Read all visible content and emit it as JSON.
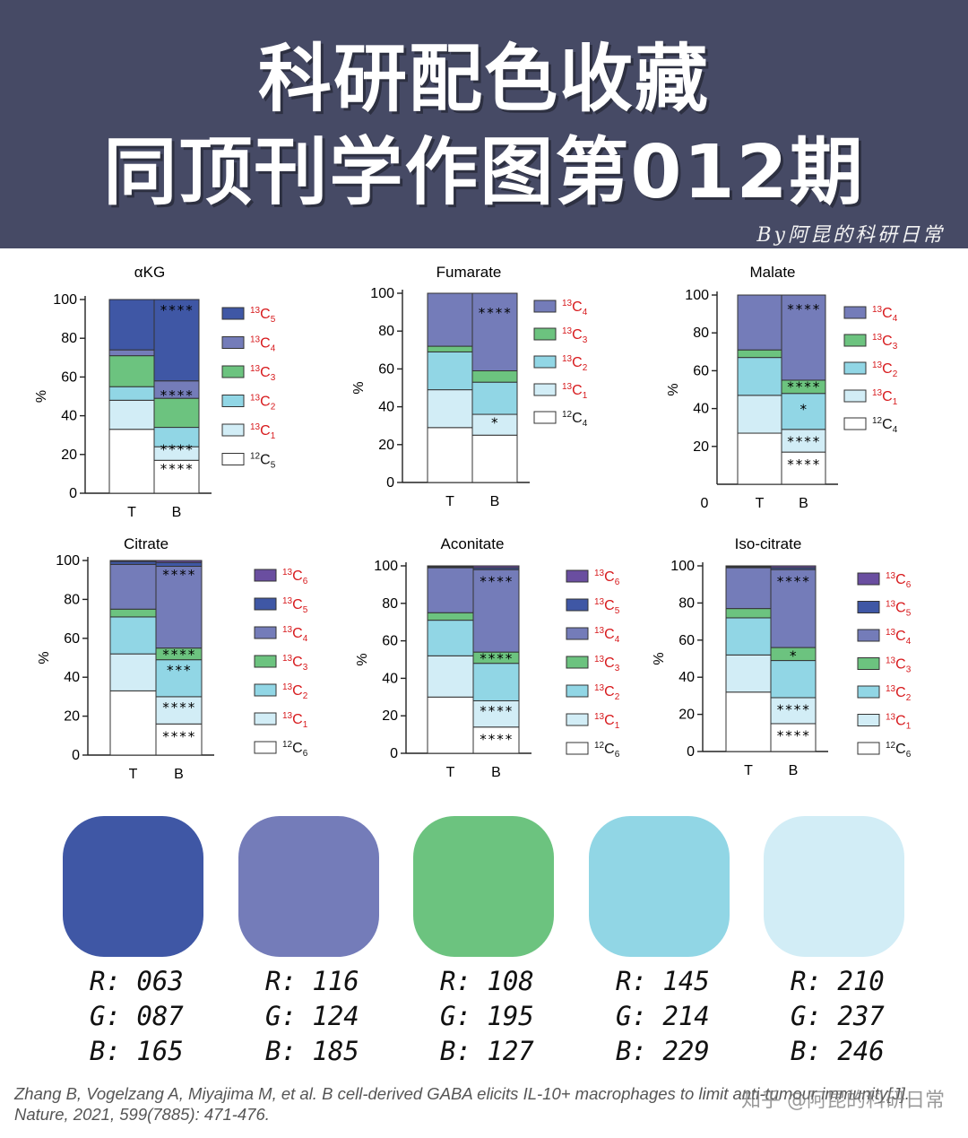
{
  "header": {
    "title_line1": "科研配色收藏",
    "title_line2": "同顶刊学作图第012期",
    "byline": "By阿昆的科研日常"
  },
  "colors": {
    "header_bg": "#464a65",
    "C6": "#6a4ea0",
    "C5": "#3f57a5",
    "C4": "#747cb9",
    "C3": "#6cc37f",
    "C2": "#91d6e5",
    "C1": "#d2edf6",
    "C0": "#ffffff"
  },
  "chart_data": [
    {
      "type": "bar",
      "stacked": true,
      "title": "αKG",
      "ylabel": "%",
      "ylim": [
        0,
        100
      ],
      "yticks": [
        0,
        20,
        40,
        60,
        80,
        100
      ],
      "categories": [
        "T",
        "B"
      ],
      "series": [
        {
          "name": "12C5",
          "values": [
            33,
            17
          ]
        },
        {
          "name": "13C1",
          "values": [
            15,
            7
          ]
        },
        {
          "name": "13C2",
          "values": [
            7,
            10
          ]
        },
        {
          "name": "13C3",
          "values": [
            16,
            15
          ]
        },
        {
          "name": "13C4",
          "values": [
            3,
            9
          ]
        },
        {
          "name": "13C5",
          "values": [
            26,
            42
          ]
        }
      ],
      "annotations": [
        {
          "category": "B",
          "label": "****",
          "y": 95
        },
        {
          "category": "B",
          "label": "****",
          "y": 51
        },
        {
          "category": "B",
          "label": "****",
          "y": 23
        },
        {
          "category": "B",
          "label": "****",
          "y": 13
        }
      ],
      "legend": [
        {
          "iso": "13",
          "el": "C",
          "sub": "5"
        },
        {
          "iso": "13",
          "el": "C",
          "sub": "4"
        },
        {
          "iso": "13",
          "el": "C",
          "sub": "3"
        },
        {
          "iso": "13",
          "el": "C",
          "sub": "2"
        },
        {
          "iso": "13",
          "el": "C",
          "sub": "1"
        },
        {
          "iso": "12",
          "el": "C",
          "sub": "5"
        }
      ]
    },
    {
      "type": "bar",
      "stacked": true,
      "title": "Fumarate",
      "ylabel": "%",
      "ylim": [
        0,
        100
      ],
      "yticks": [
        0,
        20,
        40,
        60,
        80,
        100
      ],
      "categories": [
        "T",
        "B"
      ],
      "series": [
        {
          "name": "12C4",
          "values": [
            29,
            25
          ]
        },
        {
          "name": "13C1",
          "values": [
            20,
            11
          ]
        },
        {
          "name": "13C2",
          "values": [
            20,
            17
          ]
        },
        {
          "name": "13C3",
          "values": [
            3,
            6
          ]
        },
        {
          "name": "13C4",
          "values": [
            28,
            41
          ]
        }
      ],
      "annotations": [
        {
          "category": "B",
          "label": "****",
          "y": 90
        },
        {
          "category": "B",
          "label": "*",
          "y": 32
        }
      ],
      "legend": [
        {
          "iso": "13",
          "el": "C",
          "sub": "4"
        },
        {
          "iso": "13",
          "el": "C",
          "sub": "3"
        },
        {
          "iso": "13",
          "el": "C",
          "sub": "2"
        },
        {
          "iso": "13",
          "el": "C",
          "sub": "1"
        },
        {
          "iso": "12",
          "el": "C",
          "sub": "4"
        }
      ]
    },
    {
      "type": "bar",
      "stacked": true,
      "title": "Malate",
      "ylabel": "%",
      "ylim": [
        0,
        100
      ],
      "yticks": [
        20,
        40,
        60,
        80,
        100
      ],
      "xorigin_label": "0",
      "categories": [
        "T",
        "B"
      ],
      "series": [
        {
          "name": "12C4",
          "values": [
            27,
            17
          ]
        },
        {
          "name": "13C1",
          "values": [
            20,
            12
          ]
        },
        {
          "name": "13C2",
          "values": [
            20,
            19
          ]
        },
        {
          "name": "13C3",
          "values": [
            4,
            7
          ]
        },
        {
          "name": "13C4",
          "values": [
            29,
            45
          ]
        }
      ],
      "annotations": [
        {
          "category": "B",
          "label": "****",
          "y": 93
        },
        {
          "category": "B",
          "label": "****",
          "y": 52
        },
        {
          "category": "B",
          "label": "*",
          "y": 40
        },
        {
          "category": "B",
          "label": "****",
          "y": 23
        },
        {
          "category": "B",
          "label": "****",
          "y": 11
        }
      ],
      "legend": [
        {
          "iso": "13",
          "el": "C",
          "sub": "4"
        },
        {
          "iso": "13",
          "el": "C",
          "sub": "3"
        },
        {
          "iso": "13",
          "el": "C",
          "sub": "2"
        },
        {
          "iso": "13",
          "el": "C",
          "sub": "1"
        },
        {
          "iso": "12",
          "el": "C",
          "sub": "4"
        }
      ]
    },
    {
      "type": "bar",
      "stacked": true,
      "title": "Citrate",
      "ylabel": "%",
      "ylim": [
        0,
        100
      ],
      "yticks": [
        0,
        20,
        40,
        60,
        80,
        100
      ],
      "categories": [
        "T",
        "B"
      ],
      "series": [
        {
          "name": "12C6",
          "values": [
            33,
            16
          ]
        },
        {
          "name": "13C1",
          "values": [
            19,
            14
          ]
        },
        {
          "name": "13C2",
          "values": [
            19,
            19
          ]
        },
        {
          "name": "13C3",
          "values": [
            4,
            6
          ]
        },
        {
          "name": "13C4",
          "values": [
            23,
            42
          ]
        },
        {
          "name": "13C5",
          "values": [
            1.5,
            2
          ]
        },
        {
          "name": "13C6",
          "values": [
            0.5,
            1
          ]
        }
      ],
      "annotations": [
        {
          "category": "B",
          "label": "****",
          "y": 93
        },
        {
          "category": "B",
          "label": "****",
          "y": 52
        },
        {
          "category": "B",
          "label": "***",
          "y": 44
        },
        {
          "category": "B",
          "label": "****",
          "y": 25
        },
        {
          "category": "B",
          "label": "****",
          "y": 10
        }
      ],
      "legend": [
        {
          "iso": "13",
          "el": "C",
          "sub": "6"
        },
        {
          "iso": "13",
          "el": "C",
          "sub": "5"
        },
        {
          "iso": "13",
          "el": "C",
          "sub": "4"
        },
        {
          "iso": "13",
          "el": "C",
          "sub": "3"
        },
        {
          "iso": "13",
          "el": "C",
          "sub": "2"
        },
        {
          "iso": "13",
          "el": "C",
          "sub": "1"
        },
        {
          "iso": "12",
          "el": "C",
          "sub": "6"
        }
      ]
    },
    {
      "type": "bar",
      "stacked": true,
      "title": "Aconitate",
      "ylabel": "%",
      "ylim": [
        0,
        100
      ],
      "yticks": [
        0,
        20,
        40,
        60,
        80,
        100
      ],
      "categories": [
        "T",
        "B"
      ],
      "series": [
        {
          "name": "12C6",
          "values": [
            30,
            14
          ]
        },
        {
          "name": "13C1",
          "values": [
            22,
            14
          ]
        },
        {
          "name": "13C2",
          "values": [
            19,
            20
          ]
        },
        {
          "name": "13C3",
          "values": [
            4,
            6
          ]
        },
        {
          "name": "13C4",
          "values": [
            24,
            44
          ]
        },
        {
          "name": "13C5",
          "values": [
            0.5,
            1
          ]
        },
        {
          "name": "13C6",
          "values": [
            0.5,
            1
          ]
        }
      ],
      "annotations": [
        {
          "category": "B",
          "label": "****",
          "y": 92
        },
        {
          "category": "B",
          "label": "****",
          "y": 51
        },
        {
          "category": "B",
          "label": "****",
          "y": 23
        },
        {
          "category": "B",
          "label": "****",
          "y": 8
        }
      ],
      "legend": [
        {
          "iso": "13",
          "el": "C",
          "sub": "6"
        },
        {
          "iso": "13",
          "el": "C",
          "sub": "5"
        },
        {
          "iso": "13",
          "el": "C",
          "sub": "4"
        },
        {
          "iso": "13",
          "el": "C",
          "sub": "3"
        },
        {
          "iso": "13",
          "el": "C",
          "sub": "2"
        },
        {
          "iso": "13",
          "el": "C",
          "sub": "1"
        },
        {
          "iso": "12",
          "el": "C",
          "sub": "6"
        }
      ]
    },
    {
      "type": "bar",
      "stacked": true,
      "title": "Iso-citrate",
      "ylabel": "%",
      "ylim": [
        0,
        100
      ],
      "yticks": [
        0,
        20,
        40,
        60,
        80,
        100
      ],
      "categories": [
        "T",
        "B"
      ],
      "series": [
        {
          "name": "12C6",
          "values": [
            32,
            15
          ]
        },
        {
          "name": "13C1",
          "values": [
            20,
            14
          ]
        },
        {
          "name": "13C2",
          "values": [
            20,
            20
          ]
        },
        {
          "name": "13C3",
          "values": [
            5,
            7
          ]
        },
        {
          "name": "13C4",
          "values": [
            22,
            42
          ]
        },
        {
          "name": "13C5",
          "values": [
            0.5,
            1
          ]
        },
        {
          "name": "13C6",
          "values": [
            0.5,
            1
          ]
        }
      ],
      "annotations": [
        {
          "category": "B",
          "label": "****",
          "y": 92
        },
        {
          "category": "B",
          "label": "*",
          "y": 52
        },
        {
          "category": "B",
          "label": "****",
          "y": 23
        },
        {
          "category": "B",
          "label": "****",
          "y": 9
        }
      ],
      "legend": [
        {
          "iso": "13",
          "el": "C",
          "sub": "6"
        },
        {
          "iso": "13",
          "el": "C",
          "sub": "5"
        },
        {
          "iso": "13",
          "el": "C",
          "sub": "4"
        },
        {
          "iso": "13",
          "el": "C",
          "sub": "3"
        },
        {
          "iso": "13",
          "el": "C",
          "sub": "2"
        },
        {
          "iso": "13",
          "el": "C",
          "sub": "1"
        },
        {
          "iso": "12",
          "el": "C",
          "sub": "6"
        }
      ]
    }
  ],
  "palette": [
    {
      "hex": "#3f57a5",
      "r": "R: 063",
      "g": "G: 087",
      "b": "B: 165"
    },
    {
      "hex": "#747cb9",
      "r": "R: 116",
      "g": "G: 124",
      "b": "B: 185"
    },
    {
      "hex": "#6cc37f",
      "r": "R: 108",
      "g": "G: 195",
      "b": "B: 127"
    },
    {
      "hex": "#91d6e5",
      "r": "R: 145",
      "g": "G: 214",
      "b": "B: 229"
    },
    {
      "hex": "#d2edf6",
      "r": "R: 210",
      "g": "G: 237",
      "b": "B: 246"
    }
  ],
  "citation": "Zhang B, Vogelzang A, Miyajima M, et al. B cell-derived GABA elicits IL-10+ macrophages to limit anti-tumour immunity[J]. Nature, 2021, 599(7885): 471-476.",
  "watermark": "知乎 @阿昆的科研日常"
}
